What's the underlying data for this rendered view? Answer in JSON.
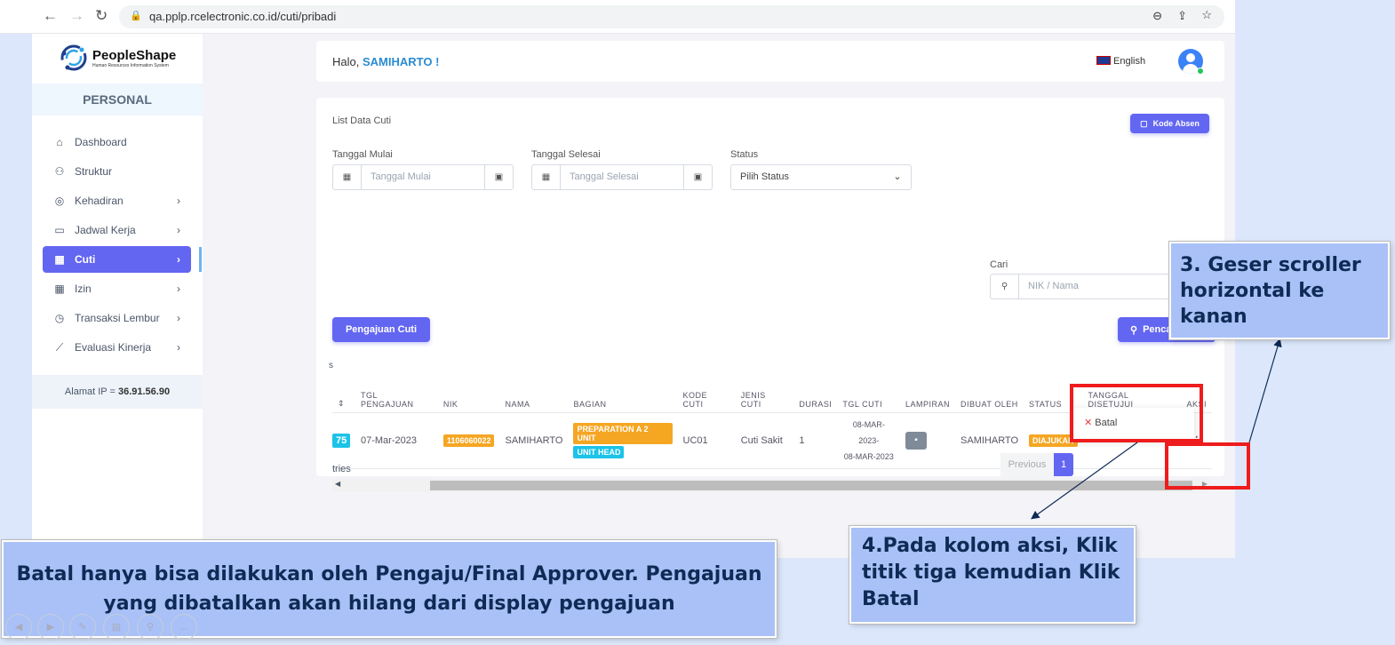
{
  "browser": {
    "url": "qa.pplp.rcelectronic.co.id/cuti/pribadi"
  },
  "sidebar": {
    "logo": "PeopleShape",
    "logo_sub": "Human Resources Information System",
    "section": "PERSONAL",
    "items": [
      {
        "label": "Dashboard",
        "icon": "home-icon"
      },
      {
        "label": "Struktur",
        "icon": "org-chart-icon"
      },
      {
        "label": "Kehadiran",
        "icon": "fingerprint-icon",
        "chevron": true
      },
      {
        "label": "Jadwal Kerja",
        "icon": "briefcase-icon",
        "chevron": true
      },
      {
        "label": "Cuti",
        "icon": "calendar-icon",
        "chevron": true,
        "active": true
      },
      {
        "label": "Izin",
        "icon": "calendar-icon",
        "chevron": true
      },
      {
        "label": "Transaksi Lembur",
        "icon": "clock-icon",
        "chevron": true
      },
      {
        "label": "Evaluasi Kinerja",
        "icon": "chart-icon",
        "chevron": true
      }
    ],
    "ip_label": "Alamat IP  =",
    "ip_value": "36.91.56.90"
  },
  "header": {
    "greeting": "Halo, ",
    "user": "SAMIHARTO !",
    "language": "English"
  },
  "panel": {
    "title": "List Data Cuti",
    "kode_absen": "Kode Absen",
    "tanggal_mulai_label": "Tanggal Mulai",
    "tanggal_mulai_placeholder": "Tanggal Mulai",
    "tanggal_selesai_label": "Tanggal Selesai",
    "tanggal_selesai_placeholder": "Tanggal Selesai",
    "status_label": "Status",
    "status_value": "Pilih Status",
    "cari_label": "Cari",
    "cari_placeholder": "NIK / Nama",
    "pengajuan_button": "Pengajuan Cuti",
    "search_button": "Pencarian",
    "show_partial": "s",
    "entries_partial": "tries",
    "columns": [
      "TGL PENGAJUAN",
      "NIK",
      "NAMA",
      "BAGIAN",
      "KODE CUTI",
      "JENIS CUTI",
      "DURASI",
      "TGL CUTI",
      "LAMPIRAN",
      "DIBUAT OLEH",
      "STATUS",
      "TANGGAL DISETUJUI",
      "AKSI"
    ],
    "row": {
      "id_partial": "75",
      "tgl_pengajuan": "07-Mar-2023",
      "nik": "1106060022",
      "nama": "SAMIHARTO",
      "bagian1": "PREPARATION A 2 UNIT",
      "bagian2": "UNIT HEAD",
      "kode": "UC01",
      "jenis": "Cuti Sakit",
      "durasi": "1",
      "tgl_cuti_1": "08-MAR-2023-",
      "tgl_cuti_2": "08-MAR-2023",
      "dibuat": "SAMIHARTO",
      "status": "DIAJUKAN",
      "disetujui": ""
    },
    "menu_batal": "Batal",
    "prev": "Previous",
    "page": "1"
  },
  "annotations": {
    "step3": "3. Geser scroller horizontal ke kanan",
    "step4": "4.Pada kolom aksi, Klik titik tiga kemudian Klik Batal",
    "note": "Batal hanya bisa dilakukan oleh Pengaju/Final Approver. Pengajuan yang dibatalkan akan hilang dari display pengajuan"
  },
  "colors": {
    "accent": "#6366f1",
    "badge_orange": "#f5a623",
    "badge_cyan": "#1bc3e8",
    "highlight": "#ee1c1c",
    "note_bg": "#a9c1f7"
  }
}
